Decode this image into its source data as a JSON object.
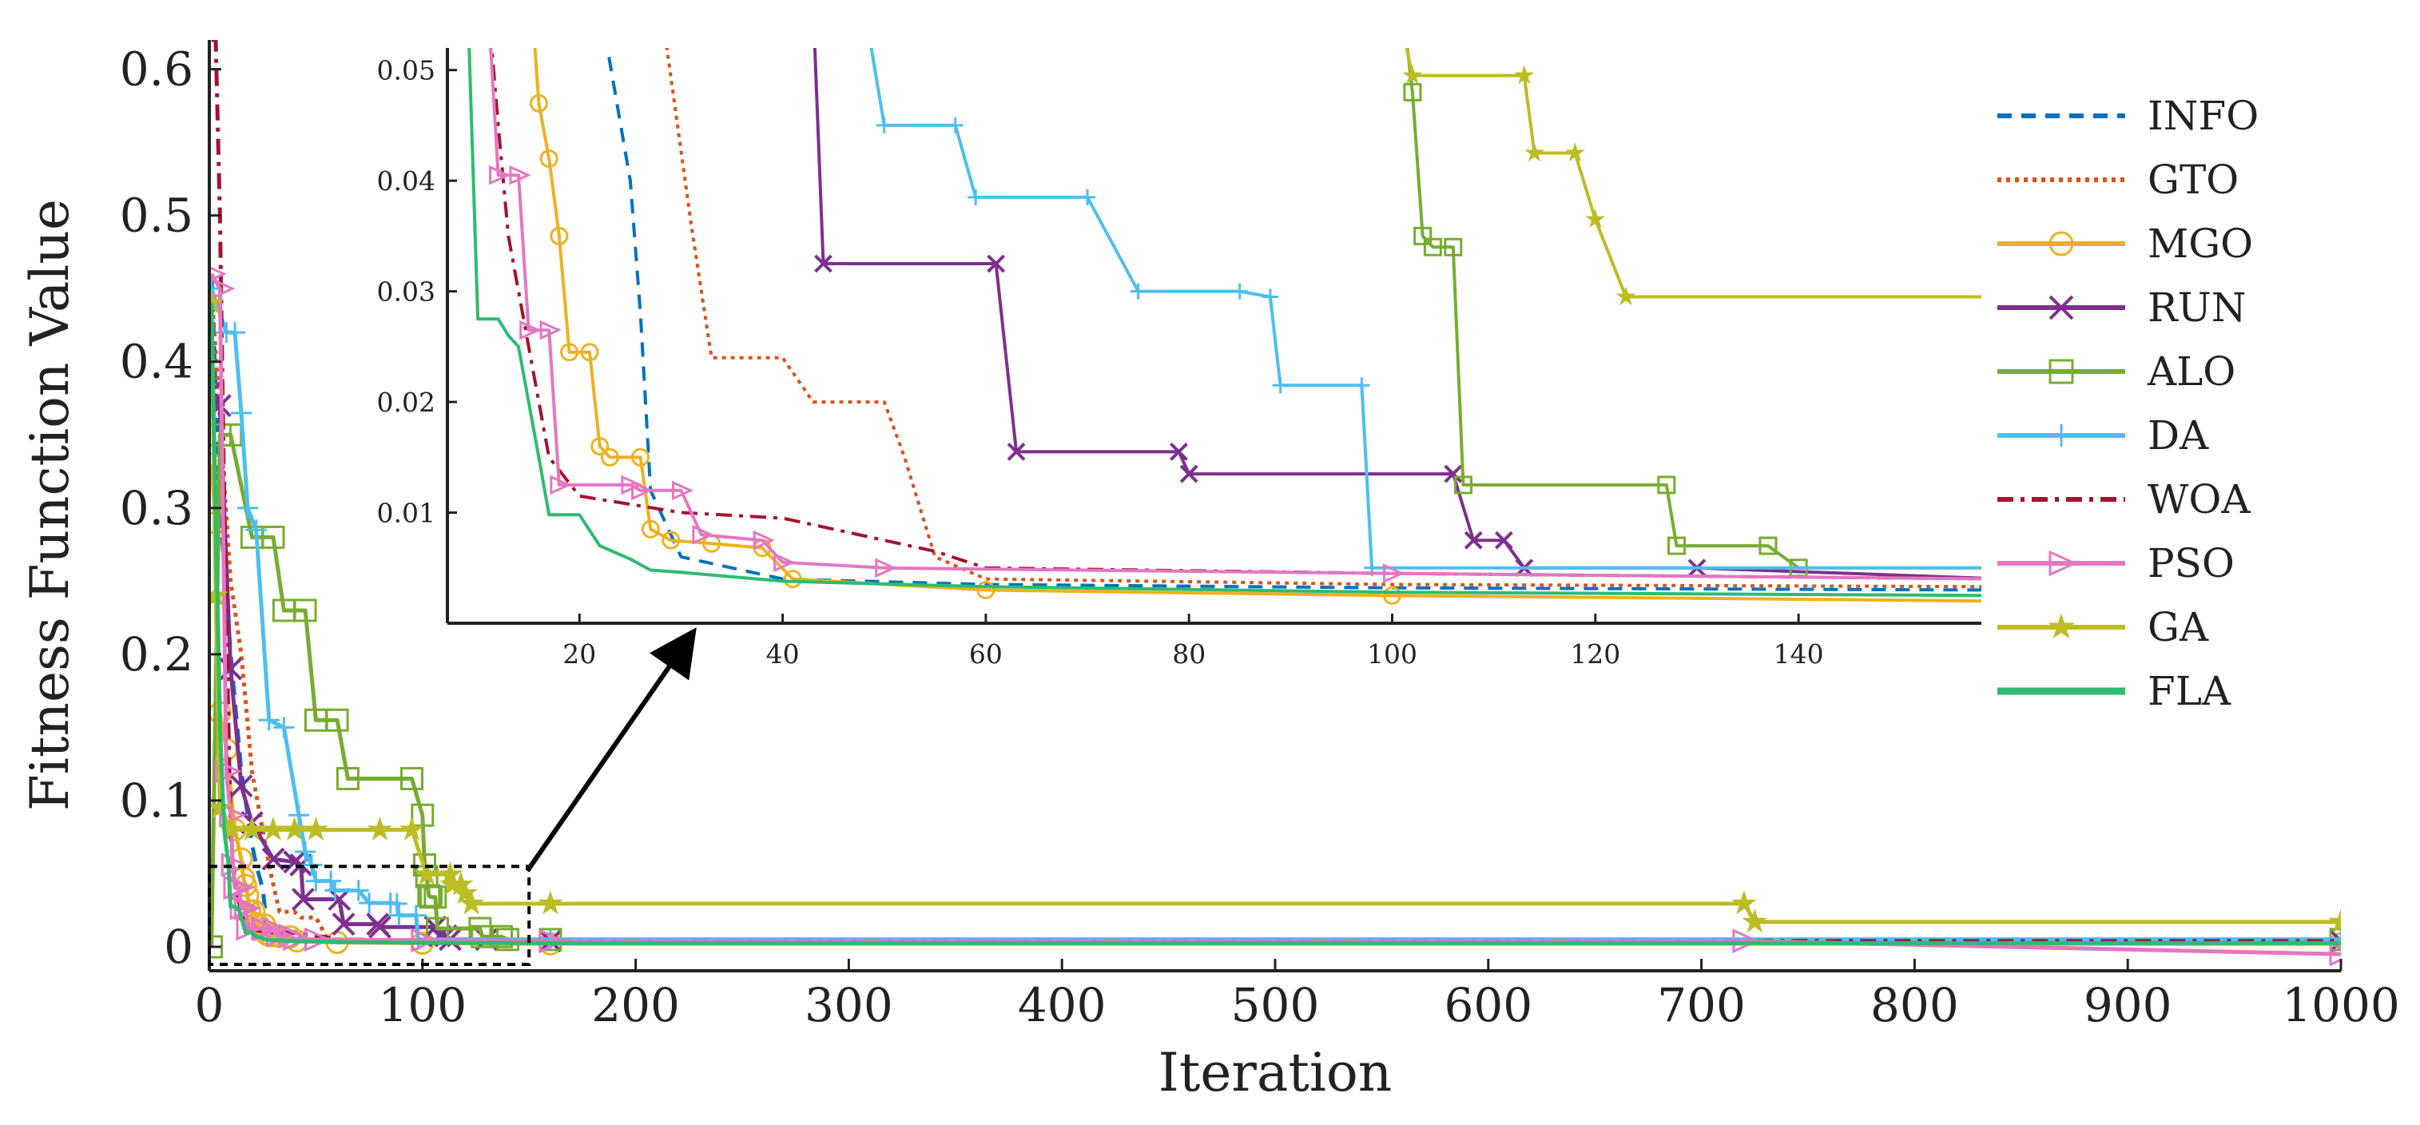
{
  "chart_data": {
    "type": "line",
    "title": "",
    "xlabel": "Iteration",
    "ylabel": "Fitness Function Value",
    "xlim": [
      0,
      1000
    ],
    "ylim": [
      0,
      0.62
    ],
    "xticks": [
      0,
      100,
      200,
      300,
      400,
      500,
      600,
      700,
      800,
      900,
      1000
    ],
    "yticks": [
      0,
      0.1,
      0.2,
      0.3,
      0.4,
      0.5,
      0.6
    ],
    "xtick_labels": [
      "0",
      "100",
      "200",
      "300",
      "400",
      "500",
      "600",
      "700",
      "800",
      "900",
      "1000"
    ],
    "ytick_labels": [
      "0",
      "0.1",
      "0.2",
      "0.3",
      "0.4",
      "0.5",
      "0.6"
    ],
    "legend_position": "right",
    "series": [
      {
        "name": "INFO",
        "color": "#0072BD",
        "dash": "dashed",
        "marker": "none",
        "points": [
          [
            1,
            0.46
          ],
          [
            5,
            0.3
          ],
          [
            10,
            0.2
          ],
          [
            15,
            0.12
          ],
          [
            20,
            0.07
          ],
          [
            22,
            0.056
          ],
          [
            25,
            0.04
          ],
          [
            26,
            0.028
          ],
          [
            27,
            0.012
          ],
          [
            30,
            0.006
          ],
          [
            35,
            0.005
          ],
          [
            40,
            0.004
          ],
          [
            60,
            0.0035
          ],
          [
            100,
            0.0032
          ],
          [
            160,
            0.003
          ],
          [
            1000,
            0.003
          ]
        ]
      },
      {
        "name": "GTO",
        "color": "#D95319",
        "dash": "dotted",
        "marker": "none",
        "points": [
          [
            1,
            0.45
          ],
          [
            10,
            0.25
          ],
          [
            15,
            0.2
          ],
          [
            20,
            0.12
          ],
          [
            25,
            0.08
          ],
          [
            28,
            0.056
          ],
          [
            31,
            0.036
          ],
          [
            33,
            0.024
          ],
          [
            40,
            0.024
          ],
          [
            43,
            0.02
          ],
          [
            50,
            0.02
          ],
          [
            52,
            0.015
          ],
          [
            55,
            0.006
          ],
          [
            60,
            0.004
          ],
          [
            100,
            0.0035
          ],
          [
            160,
            0.0033
          ],
          [
            1000,
            0.0033
          ]
        ]
      },
      {
        "name": "MGO",
        "color": "#EDB120",
        "dash": "solid",
        "marker": "circle",
        "points": [
          [
            1,
            0.33
          ],
          [
            3,
            0.29
          ],
          [
            5,
            0.16
          ],
          [
            8,
            0.135
          ],
          [
            12,
            0.08
          ],
          [
            15,
            0.06
          ],
          [
            16,
            0.047
          ],
          [
            17,
            0.042
          ],
          [
            18,
            0.035
          ],
          [
            19,
            0.0245
          ],
          [
            21,
            0.0245
          ],
          [
            22,
            0.016
          ],
          [
            23,
            0.015
          ],
          [
            26,
            0.015
          ],
          [
            27,
            0.0085
          ],
          [
            29,
            0.0075
          ],
          [
            33,
            0.0072
          ],
          [
            38,
            0.0068
          ],
          [
            41,
            0.004
          ],
          [
            60,
            0.003
          ],
          [
            100,
            0.0025
          ],
          [
            160,
            0.002
          ],
          [
            1000,
            0.002
          ]
        ]
      },
      {
        "name": "RUN",
        "color": "#7E2F8E",
        "dash": "solid",
        "marker": "x",
        "points": [
          [
            1,
            0.38
          ],
          [
            5,
            0.37
          ],
          [
            10,
            0.19
          ],
          [
            15,
            0.11
          ],
          [
            20,
            0.085
          ],
          [
            30,
            0.06
          ],
          [
            40,
            0.058
          ],
          [
            43,
            0.056
          ],
          [
            44,
            0.0325
          ],
          [
            61,
            0.0325
          ],
          [
            63,
            0.0155
          ],
          [
            79,
            0.0155
          ],
          [
            80,
            0.0135
          ],
          [
            106,
            0.0135
          ],
          [
            108,
            0.0075
          ],
          [
            111,
            0.0075
          ],
          [
            113,
            0.005
          ],
          [
            130,
            0.005
          ],
          [
            160,
            0.004
          ],
          [
            1000,
            0.004
          ]
        ]
      },
      {
        "name": "ALO",
        "color": "#77AC30",
        "dash": "solid",
        "marker": "square",
        "points": [
          [
            1,
            0.0
          ],
          [
            5,
            0.35
          ],
          [
            10,
            0.35
          ],
          [
            20,
            0.28
          ],
          [
            30,
            0.28
          ],
          [
            35,
            0.23
          ],
          [
            45,
            0.23
          ],
          [
            50,
            0.155
          ],
          [
            60,
            0.155
          ],
          [
            65,
            0.115
          ],
          [
            95,
            0.115
          ],
          [
            100,
            0.09
          ],
          [
            101,
            0.056
          ],
          [
            102,
            0.048
          ],
          [
            103,
            0.035
          ],
          [
            104,
            0.034
          ],
          [
            106,
            0.034
          ],
          [
            107,
            0.0125
          ],
          [
            127,
            0.0125
          ],
          [
            128,
            0.007
          ],
          [
            137,
            0.007
          ],
          [
            140,
            0.005
          ],
          [
            160,
            0.005
          ],
          [
            1000,
            0.005
          ]
        ]
      },
      {
        "name": "DA",
        "color": "#4DBEEE",
        "dash": "solid",
        "marker": "plus",
        "points": [
          [
            1,
            0.45
          ],
          [
            8,
            0.42
          ],
          [
            12,
            0.42
          ],
          [
            15,
            0.365
          ],
          [
            18,
            0.3
          ],
          [
            22,
            0.285
          ],
          [
            28,
            0.155
          ],
          [
            35,
            0.15
          ],
          [
            42,
            0.09
          ],
          [
            45,
            0.065
          ],
          [
            48,
            0.056
          ],
          [
            50,
            0.045
          ],
          [
            57,
            0.045
          ],
          [
            59,
            0.0385
          ],
          [
            70,
            0.0385
          ],
          [
            75,
            0.03
          ],
          [
            85,
            0.03
          ],
          [
            88,
            0.0295
          ],
          [
            89,
            0.0215
          ],
          [
            97,
            0.0215
          ],
          [
            98,
            0.005
          ],
          [
            160,
            0.005
          ],
          [
            1000,
            0.005
          ]
        ]
      },
      {
        "name": "WOA",
        "color": "#A2142F",
        "dash": "dashdot",
        "marker": "none",
        "points": [
          [
            1,
            0.62
          ],
          [
            3,
            0.62
          ],
          [
            5,
            0.5
          ],
          [
            7,
            0.3
          ],
          [
            9,
            0.15
          ],
          [
            10,
            0.08
          ],
          [
            11,
            0.056
          ],
          [
            12,
            0.045
          ],
          [
            13,
            0.035
          ],
          [
            15,
            0.025
          ],
          [
            17,
            0.015
          ],
          [
            20,
            0.0115
          ],
          [
            30,
            0.01
          ],
          [
            40,
            0.0095
          ],
          [
            45,
            0.0085
          ],
          [
            55,
            0.0065
          ],
          [
            60,
            0.005
          ],
          [
            100,
            0.0045
          ],
          [
            160,
            0.004
          ],
          [
            1000,
            0.004
          ]
        ]
      },
      {
        "name": "PSO",
        "color": "#E377C2",
        "dash": "solid",
        "marker": "triangle",
        "points": [
          [
            1,
            0.46
          ],
          [
            5,
            0.45
          ],
          [
            8,
            0.12
          ],
          [
            10,
            0.09
          ],
          [
            11,
            0.056
          ],
          [
            12,
            0.0405
          ],
          [
            14,
            0.0405
          ],
          [
            15,
            0.0265
          ],
          [
            17,
            0.0265
          ],
          [
            18,
            0.0125
          ],
          [
            25,
            0.0125
          ],
          [
            26,
            0.012
          ],
          [
            30,
            0.012
          ],
          [
            32,
            0.008
          ],
          [
            38,
            0.0075
          ],
          [
            40,
            0.0055
          ],
          [
            50,
            0.005
          ],
          [
            100,
            0.0045
          ],
          [
            160,
            0.004
          ],
          [
            720,
            0.004
          ],
          [
            1000,
            -0.005
          ]
        ]
      },
      {
        "name": "GA",
        "color": "#BCBD22",
        "dash": "solid",
        "marker": "star",
        "points": [
          [
            1,
            0.44
          ],
          [
            3,
            0.24
          ],
          [
            5,
            0.095
          ],
          [
            10,
            0.08
          ],
          [
            20,
            0.08
          ],
          [
            30,
            0.08
          ],
          [
            40,
            0.08
          ],
          [
            50,
            0.08
          ],
          [
            80,
            0.08
          ],
          [
            95,
            0.08
          ],
          [
            102,
            0.0495
          ],
          [
            113,
            0.0495
          ],
          [
            114,
            0.0425
          ],
          [
            118,
            0.0425
          ],
          [
            120,
            0.0365
          ],
          [
            123,
            0.0295
          ],
          [
            160,
            0.0295
          ],
          [
            720,
            0.0295
          ],
          [
            725,
            0.017
          ],
          [
            1000,
            0.017
          ]
        ]
      },
      {
        "name": "FLA",
        "color": "#2EBB70",
        "dash": "solid",
        "marker": "none",
        "points": [
          [
            1,
            0.44
          ],
          [
            5,
            0.15
          ],
          [
            7,
            0.08
          ],
          [
            9,
            0.056
          ],
          [
            10,
            0.0275
          ],
          [
            12,
            0.0275
          ],
          [
            13,
            0.026
          ],
          [
            14,
            0.025
          ],
          [
            15,
            0.02
          ],
          [
            16,
            0.015
          ],
          [
            17,
            0.0098
          ],
          [
            20,
            0.0098
          ],
          [
            22,
            0.007
          ],
          [
            25,
            0.0058
          ],
          [
            27,
            0.0048
          ],
          [
            30,
            0.0046
          ],
          [
            40,
            0.0038
          ],
          [
            60,
            0.0033
          ],
          [
            100,
            0.0028
          ],
          [
            160,
            0.0025
          ],
          [
            1000,
            0.0025
          ]
        ]
      }
    ],
    "inset": {
      "xlim": [
        7,
        158
      ],
      "ylim": [
        0,
        0.052
      ],
      "xticks": [
        20,
        40,
        60,
        80,
        100,
        120,
        140
      ],
      "yticks": [
        0.01,
        0.02,
        0.03,
        0.04,
        0.05
      ],
      "xtick_labels": [
        "20",
        "40",
        "60",
        "80",
        "100",
        "120",
        "140"
      ],
      "ytick_labels": [
        "0.01",
        "0.02",
        "0.03",
        "0.04",
        "0.05"
      ],
      "zoom_region": {
        "x": [
          0,
          150
        ],
        "y": [
          -0.012,
          0.055
        ]
      }
    }
  }
}
